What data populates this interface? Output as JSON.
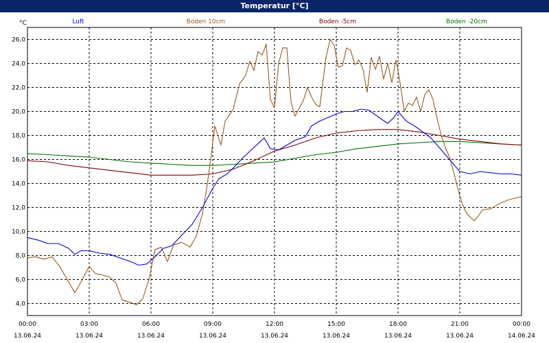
{
  "window": {
    "title": "Temperatur [°C]"
  },
  "chart_data": {
    "type": "line",
    "title": "Temperatur [°C]",
    "ylabel": "°C",
    "xlabel": "",
    "ylim": [
      3.0,
      27.0
    ],
    "xlim_hours": [
      0,
      24
    ],
    "grid": true,
    "legend_placement": "top",
    "y_ticks": [
      "4,0",
      "6,0",
      "8,0",
      "10,0",
      "12,0",
      "14,0",
      "16,0",
      "18,0",
      "20,0",
      "22,0",
      "24,0",
      "26,0"
    ],
    "x_ticks": [
      {
        "time": "00:00",
        "date": "13.06.24"
      },
      {
        "time": "03:00",
        "date": "13.06.24"
      },
      {
        "time": "06:00",
        "date": "13.06.24"
      },
      {
        "time": "09:00",
        "date": "13.06.24"
      },
      {
        "time": "12:00",
        "date": "13.06.24"
      },
      {
        "time": "15:00",
        "date": "13.06.24"
      },
      {
        "time": "18:00",
        "date": "13.06.24"
      },
      {
        "time": "21:00",
        "date": "13.06.24"
      },
      {
        "time": "00:00",
        "date": "14.06.24"
      }
    ],
    "series": [
      {
        "name": "Luft",
        "color": "#0000e0",
        "points": [
          [
            0,
            9.5
          ],
          [
            0.5,
            9.3
          ],
          [
            1,
            9.0
          ],
          [
            1.5,
            9.0
          ],
          [
            2,
            8.6
          ],
          [
            2.3,
            8.1
          ],
          [
            2.6,
            8.4
          ],
          [
            3,
            8.4
          ],
          [
            3.5,
            8.2
          ],
          [
            4,
            8.1
          ],
          [
            4.5,
            7.8
          ],
          [
            5,
            7.5
          ],
          [
            5.4,
            7.2
          ],
          [
            5.8,
            7.3
          ],
          [
            6.2,
            7.9
          ],
          [
            6.6,
            8.6
          ],
          [
            7,
            8.8
          ],
          [
            7.5,
            9.7
          ],
          [
            8,
            10.6
          ],
          [
            8.5,
            12.0
          ],
          [
            9,
            13.6
          ],
          [
            9.3,
            14.4
          ],
          [
            9.7,
            14.8
          ],
          [
            10,
            15.3
          ],
          [
            10.5,
            16.2
          ],
          [
            11,
            17.0
          ],
          [
            11.5,
            17.8
          ],
          [
            11.8,
            16.9
          ],
          [
            12.2,
            16.8
          ],
          [
            12.6,
            17.2
          ],
          [
            13,
            17.6
          ],
          [
            13.5,
            17.9
          ],
          [
            13.8,
            18.8
          ],
          [
            14.2,
            19.2
          ],
          [
            14.6,
            19.5
          ],
          [
            15,
            19.8
          ],
          [
            15.4,
            20.0
          ],
          [
            15.8,
            20.0
          ],
          [
            16.2,
            20.2
          ],
          [
            16.6,
            20.1
          ],
          [
            17,
            19.6
          ],
          [
            17.5,
            19.0
          ],
          [
            17.8,
            19.5
          ],
          [
            18,
            20.0
          ],
          [
            18.4,
            19.2
          ],
          [
            18.8,
            18.8
          ],
          [
            19.2,
            18.3
          ],
          [
            19.6,
            17.8
          ],
          [
            20,
            17.0
          ],
          [
            20.5,
            16.0
          ],
          [
            21,
            15.0
          ],
          [
            21.5,
            14.8
          ],
          [
            22,
            15.0
          ],
          [
            22.5,
            14.9
          ],
          [
            23,
            14.8
          ],
          [
            23.5,
            14.8
          ],
          [
            24,
            14.7
          ]
        ]
      },
      {
        "name": "Boden 10cm",
        "color": "#9a5a1a",
        "points": [
          [
            0,
            7.8
          ],
          [
            0.4,
            7.9
          ],
          [
            0.8,
            7.7
          ],
          [
            1.2,
            7.9
          ],
          [
            1.6,
            7.0
          ],
          [
            2,
            5.8
          ],
          [
            2.3,
            4.9
          ],
          [
            2.6,
            5.8
          ],
          [
            3,
            7.1
          ],
          [
            3.3,
            6.5
          ],
          [
            3.6,
            6.4
          ],
          [
            4,
            6.2
          ],
          [
            4.3,
            5.7
          ],
          [
            4.6,
            4.3
          ],
          [
            5,
            4.1
          ],
          [
            5.3,
            3.9
          ],
          [
            5.6,
            4.4
          ],
          [
            5.9,
            6.0
          ],
          [
            6.2,
            8.5
          ],
          [
            6.5,
            8.7
          ],
          [
            6.8,
            7.5
          ],
          [
            7.1,
            8.9
          ],
          [
            7.5,
            9.1
          ],
          [
            7.9,
            8.7
          ],
          [
            8.2,
            9.6
          ],
          [
            8.5,
            11.5
          ],
          [
            8.7,
            13.5
          ],
          [
            8.9,
            16.0
          ],
          [
            9.1,
            18.8
          ],
          [
            9.4,
            17.2
          ],
          [
            9.6,
            19.2
          ],
          [
            9.8,
            19.7
          ],
          [
            10.0,
            20.2
          ],
          [
            10.3,
            22.3
          ],
          [
            10.6,
            23.0
          ],
          [
            10.8,
            24.2
          ],
          [
            11.0,
            23.4
          ],
          [
            11.2,
            25.0
          ],
          [
            11.4,
            24.7
          ],
          [
            11.6,
            25.6
          ],
          [
            11.8,
            21.0
          ],
          [
            12.0,
            20.3
          ],
          [
            12.2,
            24.0
          ],
          [
            12.4,
            25.3
          ],
          [
            12.6,
            25.3
          ],
          [
            12.8,
            20.8
          ],
          [
            13.0,
            19.6
          ],
          [
            13.2,
            20.3
          ],
          [
            13.4,
            20.9
          ],
          [
            13.6,
            22.0
          ],
          [
            13.8,
            21.2
          ],
          [
            14.0,
            20.6
          ],
          [
            14.2,
            20.4
          ],
          [
            14.5,
            24.5
          ],
          [
            14.7,
            26.0
          ],
          [
            14.9,
            25.5
          ],
          [
            15.1,
            23.7
          ],
          [
            15.3,
            23.8
          ],
          [
            15.5,
            25.3
          ],
          [
            15.7,
            25.1
          ],
          [
            15.9,
            23.9
          ],
          [
            16.1,
            24.3
          ],
          [
            16.3,
            23.5
          ],
          [
            16.5,
            21.6
          ],
          [
            16.7,
            24.5
          ],
          [
            16.9,
            23.5
          ],
          [
            17.1,
            24.6
          ],
          [
            17.3,
            22.7
          ],
          [
            17.5,
            24.0
          ],
          [
            17.7,
            22.4
          ],
          [
            17.9,
            24.3
          ],
          [
            18.1,
            22.4
          ],
          [
            18.3,
            20.0
          ],
          [
            18.5,
            20.7
          ],
          [
            18.7,
            20.5
          ],
          [
            18.9,
            21.2
          ],
          [
            19.1,
            20.0
          ],
          [
            19.3,
            21.4
          ],
          [
            19.5,
            21.8
          ],
          [
            19.7,
            21.0
          ],
          [
            19.9,
            19.4
          ],
          [
            20.1,
            18.0
          ],
          [
            20.3,
            17.0
          ],
          [
            20.5,
            16.2
          ],
          [
            20.7,
            15.0
          ],
          [
            20.9,
            13.6
          ],
          [
            21.1,
            12.4
          ],
          [
            21.3,
            11.6
          ],
          [
            21.5,
            11.2
          ],
          [
            21.7,
            10.9
          ],
          [
            21.9,
            11.3
          ],
          [
            22.1,
            11.8
          ],
          [
            22.5,
            11.9
          ],
          [
            22.9,
            12.3
          ],
          [
            23.3,
            12.6
          ],
          [
            23.7,
            12.8
          ],
          [
            24,
            12.9
          ]
        ]
      },
      {
        "name": "Boden -5cm",
        "color": "#800000",
        "points": [
          [
            0,
            15.9
          ],
          [
            1,
            15.8
          ],
          [
            2,
            15.5
          ],
          [
            3,
            15.3
          ],
          [
            4,
            15.1
          ],
          [
            5,
            14.9
          ],
          [
            6,
            14.7
          ],
          [
            7,
            14.7
          ],
          [
            8,
            14.7
          ],
          [
            9,
            14.8
          ],
          [
            10,
            15.2
          ],
          [
            11,
            15.9
          ],
          [
            12,
            16.7
          ],
          [
            13,
            17.2
          ],
          [
            14,
            17.8
          ],
          [
            15,
            18.2
          ],
          [
            16,
            18.4
          ],
          [
            17,
            18.5
          ],
          [
            18,
            18.5
          ],
          [
            19,
            18.3
          ],
          [
            20,
            18.0
          ],
          [
            21,
            17.7
          ],
          [
            22,
            17.5
          ],
          [
            23,
            17.3
          ],
          [
            24,
            17.2
          ]
        ]
      },
      {
        "name": "Boden -20cm",
        "color": "#007000",
        "points": [
          [
            0,
            16.5
          ],
          [
            1,
            16.4
          ],
          [
            2,
            16.3
          ],
          [
            3,
            16.2
          ],
          [
            4,
            16.0
          ],
          [
            5,
            15.8
          ],
          [
            6,
            15.7
          ],
          [
            7,
            15.6
          ],
          [
            8,
            15.5
          ],
          [
            9,
            15.5
          ],
          [
            10,
            15.6
          ],
          [
            11,
            15.7
          ],
          [
            12,
            15.8
          ],
          [
            13,
            16.1
          ],
          [
            14,
            16.4
          ],
          [
            15,
            16.6
          ],
          [
            16,
            16.9
          ],
          [
            17,
            17.1
          ],
          [
            18,
            17.3
          ],
          [
            19,
            17.4
          ],
          [
            20,
            17.5
          ],
          [
            21,
            17.5
          ],
          [
            22,
            17.4
          ],
          [
            23,
            17.3
          ],
          [
            24,
            17.2
          ]
        ]
      }
    ]
  }
}
